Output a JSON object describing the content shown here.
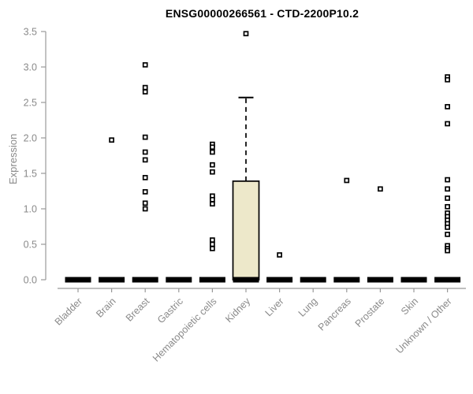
{
  "chart_data": {
    "type": "boxplot",
    "title": "ENSG00000266561 - CTD-2200P10.2",
    "ylabel": "Expression",
    "ylim": [
      0,
      3.5
    ],
    "yticks": [
      "0.0",
      "0.5",
      "1.0",
      "1.5",
      "2.0",
      "2.5",
      "3.0",
      "3.5"
    ],
    "grid": false,
    "legend": "none",
    "categories": [
      "Bladder",
      "Brain",
      "Breast",
      "Gastric",
      "Hematopoietic cells",
      "Kidney",
      "Liver",
      "Lung",
      "Pancreas",
      "Prostate",
      "Skin",
      "Unknown / Other"
    ],
    "series": [
      {
        "category": "Bladder",
        "median": 0,
        "q1": 0,
        "q3": 0,
        "whisker_low": 0,
        "whisker_high": 0,
        "outliers": []
      },
      {
        "category": "Brain",
        "median": 0,
        "q1": 0,
        "q3": 0,
        "whisker_low": 0,
        "whisker_high": 0,
        "outliers": [
          1.97
        ]
      },
      {
        "category": "Breast",
        "median": 0,
        "q1": 0,
        "q3": 0,
        "whisker_low": 0,
        "whisker_high": 0,
        "outliers": [
          3.03,
          2.71,
          2.65,
          2.01,
          1.8,
          1.69,
          1.44,
          1.24,
          1.08,
          1.0
        ]
      },
      {
        "category": "Gastric",
        "median": 0,
        "q1": 0,
        "q3": 0,
        "whisker_low": 0,
        "whisker_high": 0,
        "outliers": []
      },
      {
        "category": "Hematopoietic cells",
        "median": 0,
        "q1": 0,
        "q3": 0,
        "whisker_low": 0,
        "whisker_high": 0,
        "outliers": [
          1.91,
          1.87,
          1.8,
          1.62,
          1.52,
          1.18,
          1.13,
          1.07,
          0.56,
          0.5,
          0.44
        ]
      },
      {
        "category": "Kidney",
        "median": 0,
        "q1": 0,
        "q3": 1.39,
        "whisker_low": 0,
        "whisker_high": 2.57,
        "outliers": [
          3.47
        ]
      },
      {
        "category": "Liver",
        "median": 0,
        "q1": 0,
        "q3": 0,
        "whisker_low": 0,
        "whisker_high": 0,
        "outliers": [
          0.35
        ]
      },
      {
        "category": "Lung",
        "median": 0,
        "q1": 0,
        "q3": 0,
        "whisker_low": 0,
        "whisker_high": 0,
        "outliers": []
      },
      {
        "category": "Pancreas",
        "median": 0,
        "q1": 0,
        "q3": 0,
        "whisker_low": 0,
        "whisker_high": 0,
        "outliers": [
          1.4
        ]
      },
      {
        "category": "Prostate",
        "median": 0,
        "q1": 0,
        "q3": 0,
        "whisker_low": 0,
        "whisker_high": 0,
        "outliers": [
          1.28
        ]
      },
      {
        "category": "Skin",
        "median": 0,
        "q1": 0,
        "q3": 0,
        "whisker_low": 0,
        "whisker_high": 0,
        "outliers": []
      },
      {
        "category": "Unknown / Other",
        "median": 0,
        "q1": 0,
        "q3": 0,
        "whisker_low": 0,
        "whisker_high": 0,
        "outliers": [
          2.86,
          2.82,
          2.44,
          2.2,
          1.41,
          1.28,
          1.15,
          1.03,
          0.94,
          0.89,
          0.84,
          0.79,
          0.74,
          0.64,
          0.48,
          0.44,
          0.41
        ]
      }
    ],
    "colors": {
      "box_fill": "#EDE8CA",
      "box_stroke": "#000000",
      "median": "#000000",
      "whisker": "#000000",
      "outlier_stroke": "#000000",
      "outlier_fill": "#ffffff",
      "axis": "#999999",
      "tick_label": "#8a8a8a",
      "title": "#000000",
      "background": "#ffffff"
    }
  }
}
